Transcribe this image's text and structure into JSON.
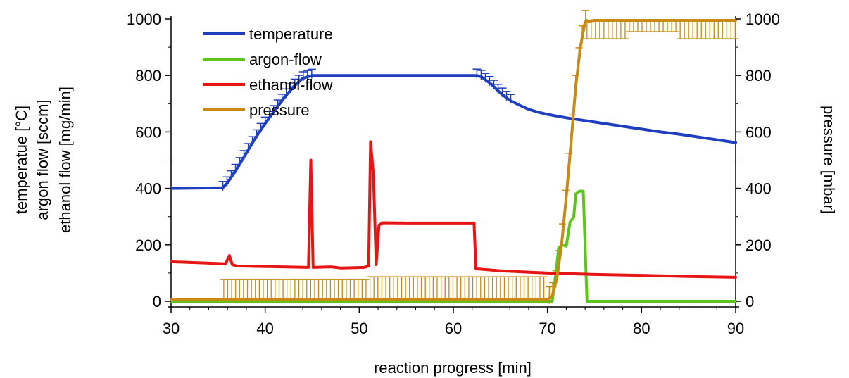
{
  "chart_data": {
    "type": "line",
    "xlabel": "reaction progress [min]",
    "ylabel_left": [
      "temperatue [°C]",
      "argon flow [sccm]",
      "ethanol flow [mg/min]"
    ],
    "ylabel_right": "pressure [mbar]",
    "xlim": [
      30,
      90
    ],
    "ylim_left": [
      0,
      1000
    ],
    "ylim_right": [
      0,
      1000
    ],
    "x_ticks": [
      30,
      40,
      50,
      60,
      70,
      80,
      90
    ],
    "y_ticks_left": [
      0,
      200,
      400,
      600,
      800,
      1000
    ],
    "y_ticks_right": [
      0,
      200,
      400,
      600,
      800,
      1000
    ],
    "legend_position": "top-left",
    "series": [
      {
        "name": "temperature",
        "color": "#1f3fbf",
        "axis": "left",
        "error_bars": true,
        "points": [
          [
            30,
            400
          ],
          [
            35.5,
            402
          ],
          [
            36,
            420
          ],
          [
            37,
            470
          ],
          [
            38,
            525
          ],
          [
            39,
            580
          ],
          [
            40,
            630
          ],
          [
            41,
            675
          ],
          [
            42,
            720
          ],
          [
            43,
            760
          ],
          [
            44,
            790
          ],
          [
            45,
            800
          ],
          [
            50,
            800
          ],
          [
            55,
            800
          ],
          [
            60,
            800
          ],
          [
            62.5,
            800
          ],
          [
            63,
            795
          ],
          [
            64,
            770
          ],
          [
            65,
            738
          ],
          [
            66,
            712
          ],
          [
            67,
            695
          ],
          [
            68,
            680
          ],
          [
            69,
            670
          ],
          [
            70,
            662
          ],
          [
            72,
            650
          ],
          [
            74,
            640
          ],
          [
            76,
            630
          ],
          [
            78,
            620
          ],
          [
            80,
            610
          ],
          [
            82,
            600
          ],
          [
            84,
            592
          ],
          [
            86,
            582
          ],
          [
            88,
            572
          ],
          [
            90,
            562
          ]
        ]
      },
      {
        "name": "argon-flow",
        "color": "#5ec41c",
        "axis": "left",
        "error_bars": false,
        "points": [
          [
            30,
            0
          ],
          [
            70.5,
            0
          ],
          [
            70.9,
            100
          ],
          [
            71.2,
            190
          ],
          [
            71.6,
            200
          ],
          [
            72,
            195
          ],
          [
            72.4,
            280
          ],
          [
            72.8,
            300
          ],
          [
            73,
            380
          ],
          [
            73.4,
            390
          ],
          [
            73.8,
            390
          ],
          [
            74,
            200
          ],
          [
            74.2,
            0
          ],
          [
            90,
            0
          ]
        ]
      },
      {
        "name": "ethanol-flow",
        "color": "#e81515",
        "axis": "left",
        "error_bars": false,
        "points": [
          [
            30,
            140
          ],
          [
            35.8,
            133
          ],
          [
            36.2,
            162
          ],
          [
            36.5,
            130
          ],
          [
            37,
            125
          ],
          [
            40,
            123
          ],
          [
            44.6,
            120
          ],
          [
            44.85,
            500
          ],
          [
            45.1,
            120
          ],
          [
            47,
            122
          ],
          [
            48,
            118
          ],
          [
            50.5,
            120
          ],
          [
            51,
            125
          ],
          [
            51.2,
            565
          ],
          [
            51.5,
            450
          ],
          [
            51.8,
            130
          ],
          [
            52.1,
            270
          ],
          [
            52.5,
            278
          ],
          [
            55,
            277
          ],
          [
            58,
            277
          ],
          [
            62.2,
            277
          ],
          [
            62.4,
            115
          ],
          [
            65,
            108
          ],
          [
            70,
            100
          ],
          [
            75,
            95
          ],
          [
            80,
            92
          ],
          [
            85,
            88
          ],
          [
            90,
            85
          ]
        ]
      },
      {
        "name": "pressure",
        "color": "#c98a14",
        "axis": "right",
        "error_bars": true,
        "points": [
          [
            30,
            5
          ],
          [
            35.5,
            5
          ],
          [
            35.6,
            5
          ],
          [
            70,
            5
          ],
          [
            70.5,
            20
          ],
          [
            71,
            80
          ],
          [
            71.5,
            200
          ],
          [
            72,
            370
          ],
          [
            72.5,
            560
          ],
          [
            73,
            760
          ],
          [
            73.5,
            900
          ],
          [
            74,
            990
          ],
          [
            75,
            995
          ],
          [
            80,
            995
          ],
          [
            85,
            995
          ],
          [
            88,
            995
          ],
          [
            90,
            995
          ]
        ]
      }
    ]
  }
}
